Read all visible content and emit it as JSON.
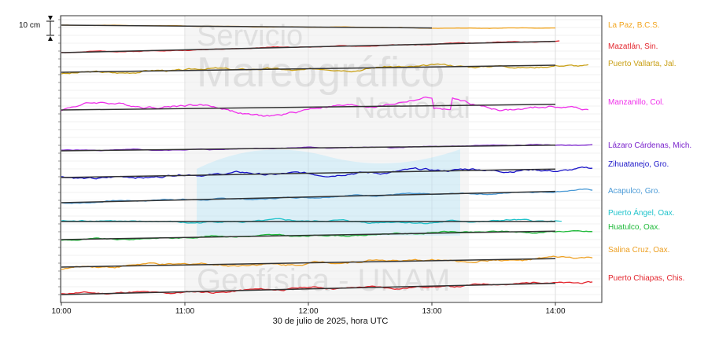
{
  "chart_data": {
    "type": "line",
    "xlabel": "30 de julio de 2025, hora UTC",
    "xticks": [
      "10:00",
      "11:00",
      "12:00",
      "13:00",
      "14:00"
    ],
    "xlim": [
      "10:00",
      "14:20"
    ],
    "scale_bar_label": "10 cm",
    "grid": true,
    "legend": "right, one label per trace",
    "watermark": {
      "line1": "Servicio",
      "line2": "Mareográfico",
      "line3": "Nacional",
      "line4": "Geofísica - UNAM"
    },
    "series": [
      {
        "name": "La Paz, B.C.S.",
        "color": "#f2a51f",
        "observed_range_cm": [
          -1,
          1
        ],
        "trend_start_cm": 0,
        "trend_end_cm": -2,
        "trend_end_time": "13:00"
      },
      {
        "name": "Mazatlán, Sin.",
        "color": "#e3262e",
        "observed_range_cm": [
          -2,
          3
        ],
        "trend_start_cm": 0,
        "trend_end_cm": 8,
        "trend_end_time": "14:00"
      },
      {
        "name": "Puerto Vallarta, Jal.",
        "color": "#c9a017",
        "observed_range_cm": [
          -5,
          8
        ],
        "trend_start_cm": 0,
        "trend_end_cm": 5,
        "trend_end_time": "14:00"
      },
      {
        "name": "Manzanillo, Col.",
        "color": "#ef2fea",
        "observed_range_cm": [
          -15,
          15
        ],
        "trend_start_cm": 0,
        "trend_end_cm": 4,
        "trend_end_time": "14:00"
      },
      {
        "name": "Lázaro Cárdenas, Mich.",
        "color": "#7a22cc",
        "observed_range_cm": [
          -1,
          2
        ],
        "trend_start_cm": 0,
        "trend_end_cm": 4,
        "trend_end_time": "14:00"
      },
      {
        "name": "Zihuatanejo, Gro.",
        "color": "#1a14c8",
        "observed_range_cm": [
          -3,
          7
        ],
        "trend_start_cm": 0,
        "trend_end_cm": 6,
        "trend_end_time": "14:00"
      },
      {
        "name": "Acapulco, Gro.",
        "color": "#4a9ad6",
        "observed_range_cm": [
          -1,
          4
        ],
        "trend_start_cm": 0,
        "trend_end_cm": 8,
        "trend_end_time": "14:00"
      },
      {
        "name": "Puerto Ángel, Oax.",
        "color": "#22c4cc",
        "observed_range_cm": [
          -2,
          5
        ],
        "trend_start_cm": 0,
        "trend_end_cm": 0,
        "trend_end_time": "14:00"
      },
      {
        "name": "Huatulco, Oax.",
        "color": "#1fba3a",
        "observed_range_cm": [
          -1,
          5
        ],
        "trend_start_cm": 0,
        "trend_end_cm": 6,
        "trend_end_time": "14:00"
      },
      {
        "name": "Salina Cruz, Oax.",
        "color": "#eda024",
        "observed_range_cm": [
          -2,
          6
        ],
        "trend_start_cm": 0,
        "trend_end_cm": 6,
        "trend_end_time": "14:00"
      },
      {
        "name": "Puerto Chiapas, Chis.",
        "color": "#e3262e",
        "observed_range_cm": [
          -1,
          7
        ],
        "trend_start_cm": 0,
        "trend_end_cm": 8,
        "trend_end_time": "14:00"
      }
    ]
  }
}
